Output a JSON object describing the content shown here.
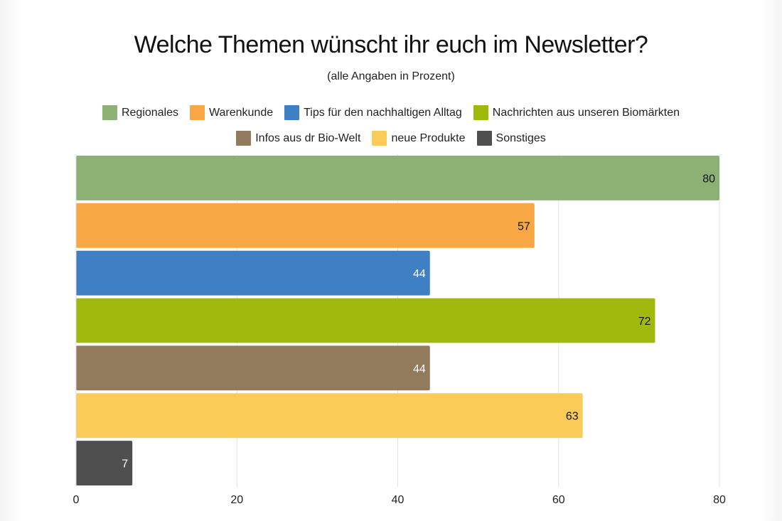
{
  "chart_data": {
    "type": "bar",
    "orientation": "horizontal",
    "title": "Welche Themen wünscht ihr euch im Newsletter?",
    "subtitle": "(alle Angaben in Prozent)",
    "xlim": [
      0,
      80
    ],
    "xticks": [
      "0",
      "20",
      "40",
      "60",
      "80"
    ],
    "grid": true,
    "legend_position": "top",
    "series": [
      {
        "name": "Regionales",
        "value": 80,
        "color": "#8db075",
        "label_color": "#111111"
      },
      {
        "name": "Warenkunde",
        "value": 57,
        "color": "#f7a744",
        "label_color": "#111111"
      },
      {
        "name": "Tips für den nachhaltigen Alltag",
        "value": 44,
        "color": "#3f80c5",
        "label_color": "#ffffff"
      },
      {
        "name": "Nachrichten aus unseren Biomärkten",
        "value": 72,
        "color": "#9fba0c",
        "label_color": "#111111"
      },
      {
        "name": "Infos aus dr Bio-Welt",
        "value": 44,
        "color": "#927a5c",
        "label_color": "#ffffff"
      },
      {
        "name": "neue Produkte",
        "value": 63,
        "color": "#fbcb58",
        "label_color": "#111111"
      },
      {
        "name": "Sonstiges",
        "value": 7,
        "color": "#4f4f4f",
        "label_color": "#ffffff"
      }
    ]
  }
}
